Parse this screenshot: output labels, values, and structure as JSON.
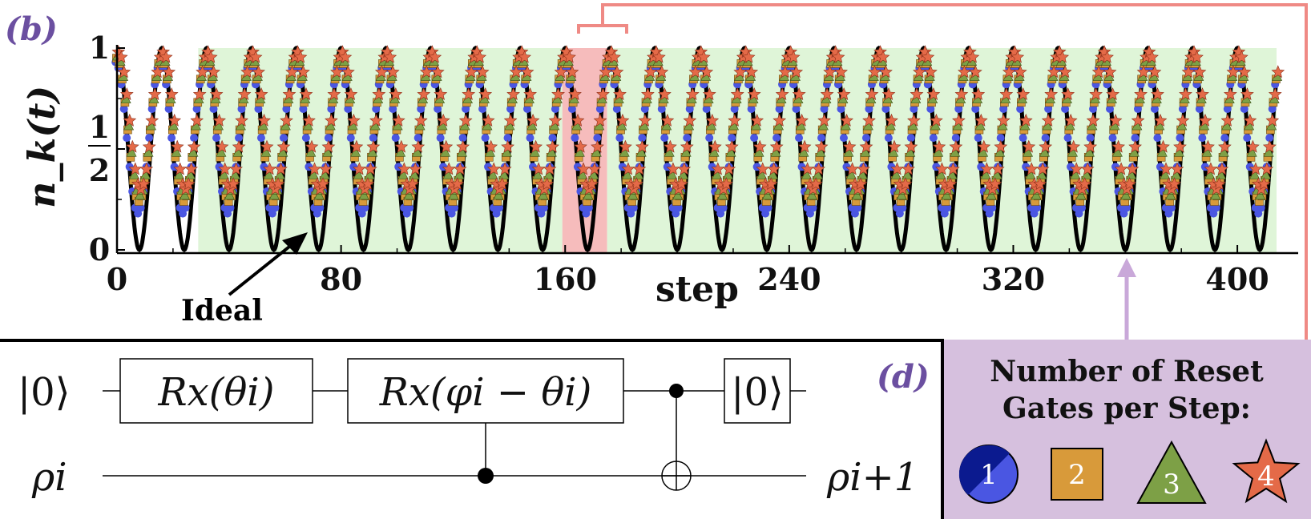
{
  "panel_b": {
    "label": "(b)",
    "ylabel": "n_k(t)",
    "xlabel": "step",
    "annotation": "Ideal"
  },
  "panel_d": {
    "label": "(d)"
  },
  "circuit": {
    "ancilla_in": "|0⟩",
    "gate1": "Rx(θi)",
    "gate2": "Rx(φi − θi)",
    "reset": "|0⟩",
    "rho_in": "ρi",
    "rho_out": "ρi+1"
  },
  "legend": {
    "title_line1": "Number of Reset",
    "title_line2": "Gates per Step:",
    "items": [
      {
        "label": "1",
        "shape": "circle",
        "color": "#4a56e2",
        "dark": "#0b1a8f"
      },
      {
        "label": "2",
        "shape": "square",
        "color": "#d89a3a"
      },
      {
        "label": "3",
        "shape": "triangle",
        "color": "#7da046"
      },
      {
        "label": "4",
        "shape": "star",
        "color": "#e46a48"
      }
    ]
  },
  "chart_data": {
    "type": "scatter",
    "xlabel": "step",
    "ylabel": "n_k(t)",
    "xlim": [
      0,
      420
    ],
    "ylim": [
      0,
      1
    ],
    "x_ticks": [
      0,
      80,
      160,
      240,
      320,
      400
    ],
    "y_ticks": [
      {
        "value": 0,
        "label": "0"
      },
      {
        "value": 0.5,
        "label": "1/2"
      },
      {
        "value": 1,
        "label": "1"
      }
    ],
    "period_steps": 16,
    "ideal": {
      "min": 0.0,
      "max": 1.0,
      "start": 1.0
    },
    "series": [
      {
        "name": "1",
        "marker": "circle",
        "color": "#4a56e2",
        "min": 0.18,
        "max": 0.93
      },
      {
        "name": "2",
        "marker": "square",
        "color": "#d89a3a",
        "min": 0.24,
        "max": 0.95
      },
      {
        "name": "3",
        "marker": "triangle",
        "color": "#7da046",
        "min": 0.27,
        "max": 0.96
      },
      {
        "name": "4",
        "marker": "star",
        "color": "#e46a48",
        "min": 0.3,
        "max": 0.98
      }
    ],
    "regions": [
      {
        "from": 29,
        "to": 159,
        "color": "#dff5d8"
      },
      {
        "from": 159,
        "to": 175,
        "color": "#f6bcbc"
      },
      {
        "from": 175,
        "to": 414,
        "color": "#dff5d8"
      }
    ]
  }
}
